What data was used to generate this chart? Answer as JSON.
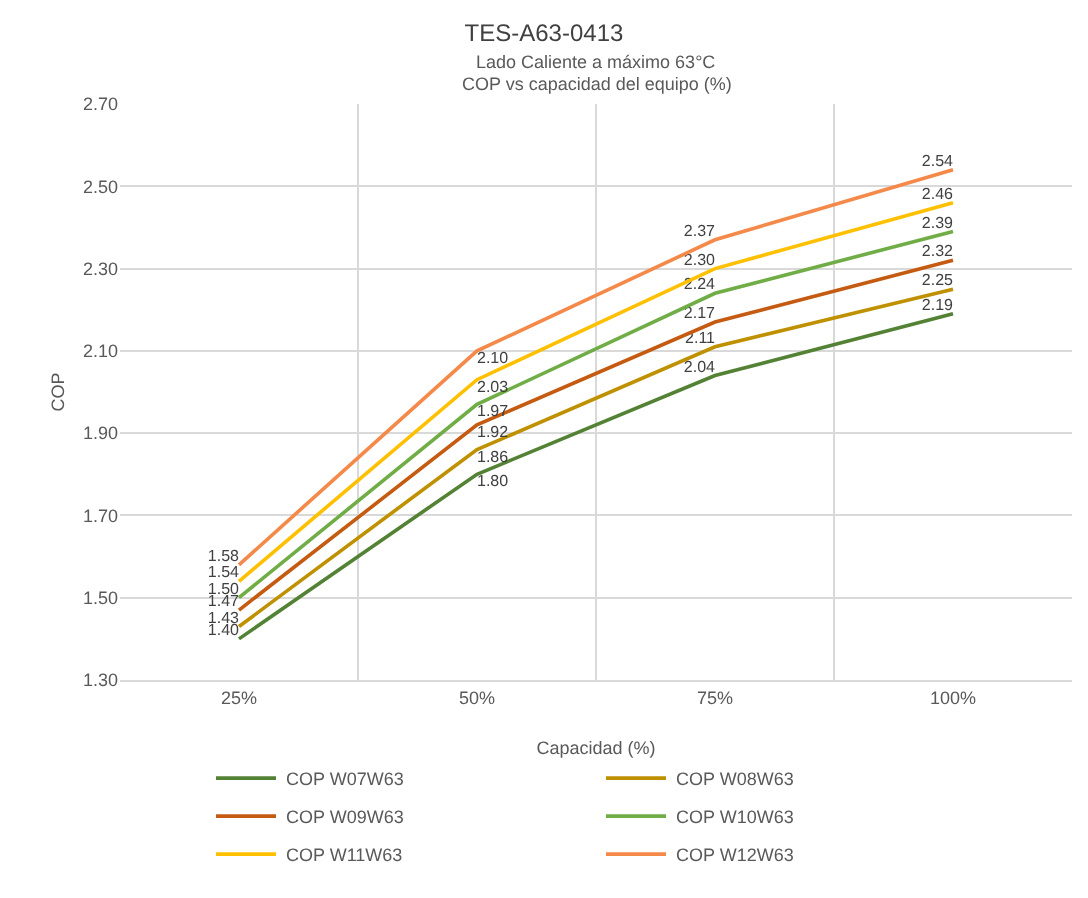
{
  "chart_data": {
    "type": "line",
    "title": "TES-A63-0413",
    "subtitle": "Lado Caliente a máximo 63°C",
    "annotations": [
      "COP vs capacidad del equipo (%)"
    ],
    "xlabel": "Capacidad (%)",
    "ylabel": "COP",
    "categories": [
      "25%",
      "50%",
      "75%",
      "100%"
    ],
    "series": [
      {
        "name": "COP W07W63",
        "color": "#548235",
        "values": [
          1.4,
          1.8,
          2.04,
          2.19
        ],
        "value_labels": [
          "1.40",
          "1.80",
          "2.04",
          "2.19"
        ]
      },
      {
        "name": "COP W08W63",
        "color": "#bf9000",
        "values": [
          1.43,
          1.86,
          2.11,
          2.25
        ],
        "value_labels": [
          "1.43",
          "1.86",
          "2.11",
          "2.25"
        ]
      },
      {
        "name": "COP W09W63",
        "color": "#c55a11",
        "values": [
          1.47,
          1.92,
          2.17,
          2.32
        ],
        "value_labels": [
          "1.47",
          "1.92",
          "2.17",
          "2.32"
        ]
      },
      {
        "name": "COP W10W63",
        "color": "#70ad47",
        "values": [
          1.5,
          1.97,
          2.24,
          2.39
        ],
        "value_labels": [
          "1.50",
          "1.97",
          "2.24",
          "2.39"
        ]
      },
      {
        "name": "COP W11W63",
        "color": "#ffc000",
        "values": [
          1.54,
          2.03,
          2.3,
          2.46
        ],
        "value_labels": [
          "1.54",
          "2.03",
          "2.30",
          "2.46"
        ]
      },
      {
        "name": "COP W12W63",
        "color": "#f4894a",
        "values": [
          1.58,
          2.1,
          2.37,
          2.54
        ],
        "value_labels": [
          "1.58",
          "2.10",
          "2.37",
          "2.54"
        ]
      }
    ],
    "ylim": [
      1.3,
      2.7
    ],
    "yticks": [
      {
        "value": 1.3,
        "label": "1.30"
      },
      {
        "value": 1.5,
        "label": "1.50"
      },
      {
        "value": 1.7,
        "label": "1.70"
      },
      {
        "value": 1.9,
        "label": "1.90"
      },
      {
        "value": 2.1,
        "label": "2.10"
      },
      {
        "value": 2.3,
        "label": "2.30"
      },
      {
        "value": 2.5,
        "label": "2.50"
      },
      {
        "value": 2.7,
        "label": "2.70"
      }
    ],
    "grid": true,
    "legend": "bottom",
    "marker": "none",
    "line_style": "solid"
  }
}
